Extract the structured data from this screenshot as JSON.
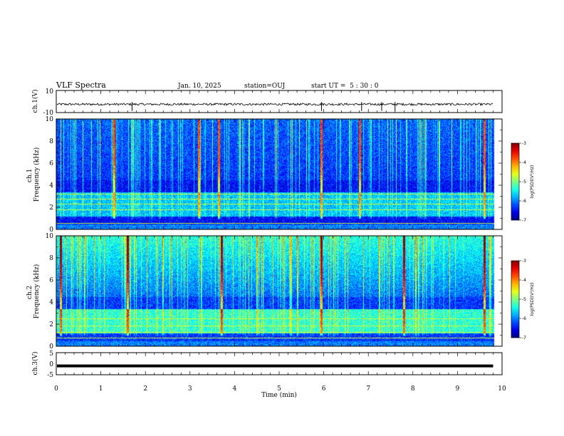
{
  "header": {
    "title": "VLF Spectra",
    "date": "Jan. 10, 2025",
    "station": "station=OUJ",
    "start": "start UT =  5 : 30 : 0"
  },
  "colors": {
    "spec_low": "#000090",
    "spec_mid": "#00ffff",
    "spec_high": "#ff0000",
    "trace": "#000000"
  },
  "chart_data": [
    {
      "type": "line",
      "panel": "ch1-waveform",
      "ylabel": "ch.1(V)",
      "ylim": [
        -10,
        10
      ],
      "yticks": [
        "10",
        "-10"
      ],
      "approx_level": -2.5,
      "approx_noise_amplitude": 1.0,
      "spikes_x_min": [
        1.7,
        5.95,
        6.85,
        7.3,
        7.6
      ]
    },
    {
      "type": "heatmap",
      "panel": "ch1-spectrogram",
      "ylabel": "ch.1\nFrequency (kHz)",
      "ylim": [
        0,
        10
      ],
      "yticks": [
        "0",
        "2",
        "4",
        "6",
        "8",
        "10"
      ],
      "colorbar": {
        "label": "log(PSD)(V²/Hz)",
        "range": [
          -7,
          -3
        ],
        "ticks": [
          "-3",
          "-4",
          "-5",
          "-6",
          "-7"
        ]
      },
      "bands_khz": [
        0.6,
        1.8,
        2.3,
        2.8,
        3.2
      ],
      "strong_spikes_x_min": [
        1.3,
        3.2,
        3.65,
        5.95,
        6.8,
        9.6
      ]
    },
    {
      "type": "heatmap",
      "panel": "ch2-spectrogram",
      "ylabel": "ch.2\nFrequency (kHz)",
      "ylim": [
        0,
        10
      ],
      "yticks": [
        "0",
        "2",
        "4",
        "6",
        "8",
        "10"
      ],
      "colorbar": {
        "label": "log(PSD)(V²/Hz)",
        "range": [
          -7,
          -3
        ],
        "ticks": [
          "-3",
          "-4",
          "-5",
          "-6",
          "-7"
        ]
      },
      "bands_khz": [
        0.8,
        1.3,
        1.9,
        2.5
      ],
      "strong_spikes_x_min": [
        0.1,
        1.6,
        3.7,
        5.95,
        7.8,
        9.6
      ]
    },
    {
      "type": "line",
      "panel": "ch3-waveform",
      "ylabel": "ch.3(V)",
      "ylim": [
        -5,
        5
      ],
      "yticks": [
        "5",
        "0",
        "-5"
      ],
      "approx_level": -1.0
    }
  ],
  "xaxis": {
    "xlabel": "Time (min)",
    "xlim": [
      0,
      10
    ],
    "ticks": [
      "0",
      "1",
      "2",
      "3",
      "4",
      "5",
      "6",
      "7",
      "8",
      "9",
      "10"
    ]
  }
}
